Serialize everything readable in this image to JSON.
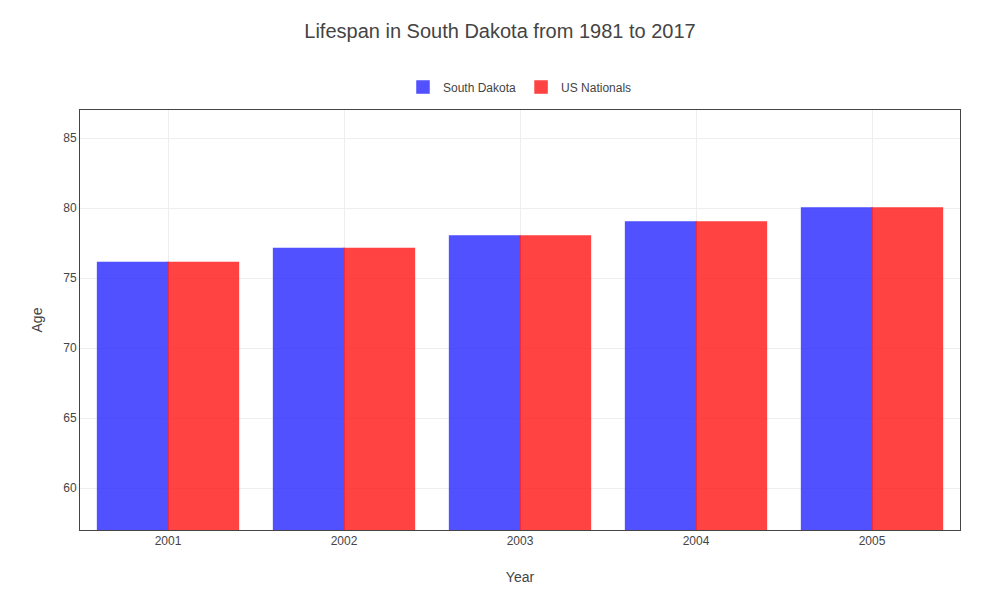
{
  "chart_data": {
    "type": "bar",
    "title": "Lifespan in South Dakota from 1981 to 2017",
    "xlabel": "Year",
    "ylabel": "Age",
    "categories": [
      "2001",
      "2002",
      "2003",
      "2004",
      "2005"
    ],
    "series": [
      {
        "name": "South Dakota",
        "color": "#3333ff",
        "values": [
          76.1,
          77.1,
          78.0,
          79.0,
          80.0
        ]
      },
      {
        "name": "US Nationals",
        "color": "#ff2222",
        "values": [
          76.1,
          77.1,
          78.0,
          79.0,
          80.0
        ]
      }
    ],
    "ylim": [
      57,
      87
    ],
    "yticks": [
      60,
      65,
      70,
      75,
      80,
      85
    ],
    "grid": true,
    "legend": "top"
  }
}
